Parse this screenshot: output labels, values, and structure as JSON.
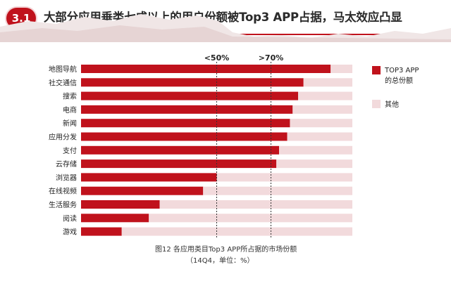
{
  "header": {
    "badge": "3.1",
    "title": "大部分应用垂类七成以上的用户份额被Top3 APP占据，马太效应凸显"
  },
  "chart_data": {
    "type": "bar",
    "orientation": "horizontal",
    "stacked": true,
    "categories": [
      "地图导航",
      "社交通信",
      "搜索",
      "电商",
      "新闻",
      "应用分发",
      "支付",
      "云存储",
      "浏览器",
      "在线视频",
      "生活服务",
      "阅读",
      "游戏"
    ],
    "series": [
      {
        "name": "TOP3 APP的总份额",
        "values": [
          92,
          82,
          80,
          78,
          77,
          76,
          73,
          72,
          50,
          45,
          29,
          25,
          15
        ],
        "color": "#c0121c"
      },
      {
        "name": "其他",
        "values": [
          8,
          18,
          20,
          22,
          23,
          24,
          27,
          28,
          50,
          55,
          71,
          75,
          85
        ],
        "color": "#f2dadc"
      }
    ],
    "xlim": [
      0,
      100
    ],
    "reference_lines": [
      {
        "value": 50,
        "label": "<50%"
      },
      {
        "value": 70,
        "label": ">70%"
      }
    ],
    "legend": [
      "TOP3 APP",
      "的总份额",
      "其他"
    ],
    "caption": [
      "图12 各应用类目Top3 APP所占据的市场份额",
      "（14Q4，单位：%）"
    ]
  }
}
